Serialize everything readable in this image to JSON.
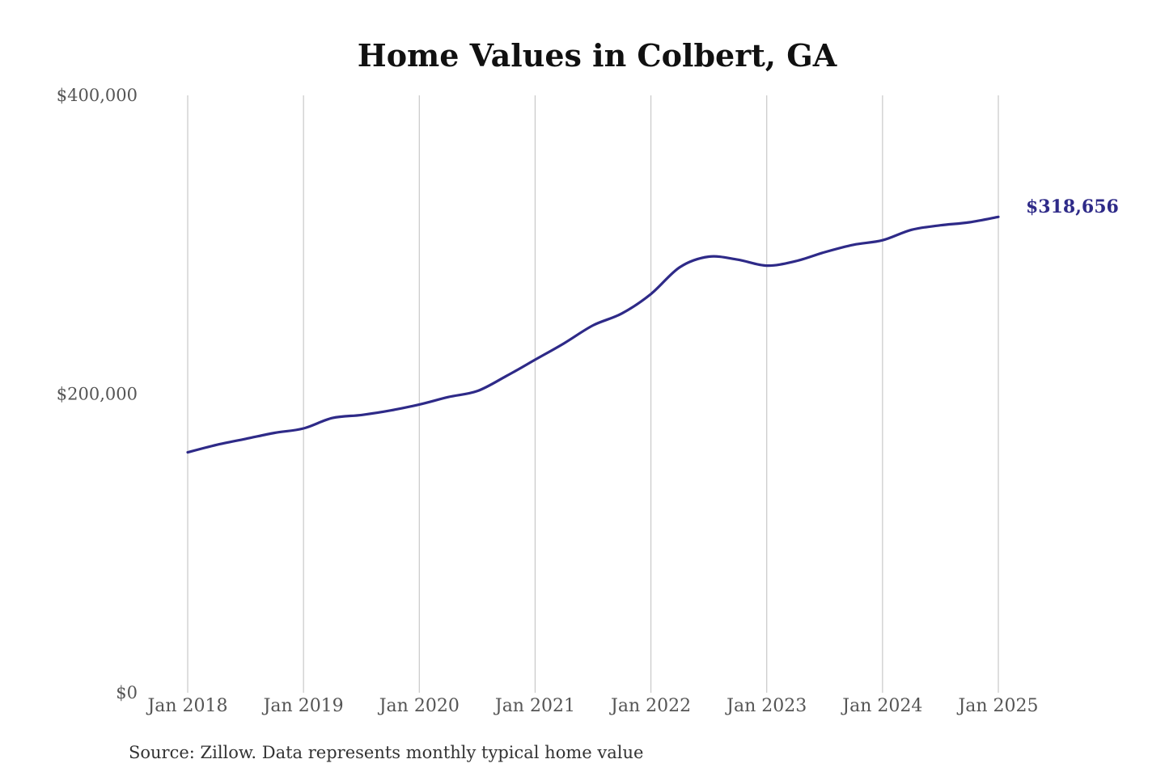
{
  "chart_data": {
    "type": "line",
    "title": "Home Values in Colbert, GA",
    "xlabel": "",
    "ylabel": "",
    "ylim": [
      0,
      400000
    ],
    "yticks": [
      {
        "value": 0,
        "label": "$0"
      },
      {
        "value": 200000,
        "label": "$200,000"
      },
      {
        "value": 400000,
        "label": "$400,000"
      }
    ],
    "xticks": [
      {
        "value": "2018-01",
        "label": "Jan 2018"
      },
      {
        "value": "2019-01",
        "label": "Jan 2019"
      },
      {
        "value": "2020-01",
        "label": "Jan 2020"
      },
      {
        "value": "2021-01",
        "label": "Jan 2021"
      },
      {
        "value": "2022-01",
        "label": "Jan 2022"
      },
      {
        "value": "2023-01",
        "label": "Jan 2023"
      },
      {
        "value": "2024-01",
        "label": "Jan 2024"
      },
      {
        "value": "2025-01",
        "label": "Jan 2025"
      }
    ],
    "grid": {
      "vertical": true,
      "horizontal": false
    },
    "series": [
      {
        "color": "#2e2a88",
        "points": [
          {
            "x": "2018-01",
            "y": 161000
          },
          {
            "x": "2018-04",
            "y": 166000
          },
          {
            "x": "2018-07",
            "y": 170000
          },
          {
            "x": "2018-10",
            "y": 174000
          },
          {
            "x": "2019-01",
            "y": 177000
          },
          {
            "x": "2019-04",
            "y": 184000
          },
          {
            "x": "2019-07",
            "y": 186000
          },
          {
            "x": "2019-10",
            "y": 189000
          },
          {
            "x": "2020-01",
            "y": 193000
          },
          {
            "x": "2020-04",
            "y": 198000
          },
          {
            "x": "2020-07",
            "y": 202000
          },
          {
            "x": "2020-10",
            "y": 212000
          },
          {
            "x": "2021-01",
            "y": 223000
          },
          {
            "x": "2021-04",
            "y": 234000
          },
          {
            "x": "2021-07",
            "y": 246000
          },
          {
            "x": "2021-10",
            "y": 254000
          },
          {
            "x": "2022-01",
            "y": 267000
          },
          {
            "x": "2022-04",
            "y": 285000
          },
          {
            "x": "2022-07",
            "y": 292000
          },
          {
            "x": "2022-10",
            "y": 290000
          },
          {
            "x": "2023-01",
            "y": 286000
          },
          {
            "x": "2023-04",
            "y": 289000
          },
          {
            "x": "2023-07",
            "y": 295000
          },
          {
            "x": "2023-10",
            "y": 300000
          },
          {
            "x": "2024-01",
            "y": 303000
          },
          {
            "x": "2024-04",
            "y": 310000
          },
          {
            "x": "2024-07",
            "y": 313000
          },
          {
            "x": "2024-10",
            "y": 315000
          },
          {
            "x": "2025-01",
            "y": 318656
          }
        ]
      }
    ],
    "end_label": "$318,656",
    "source": "Source: Zillow. Data represents monthly typical home value"
  }
}
